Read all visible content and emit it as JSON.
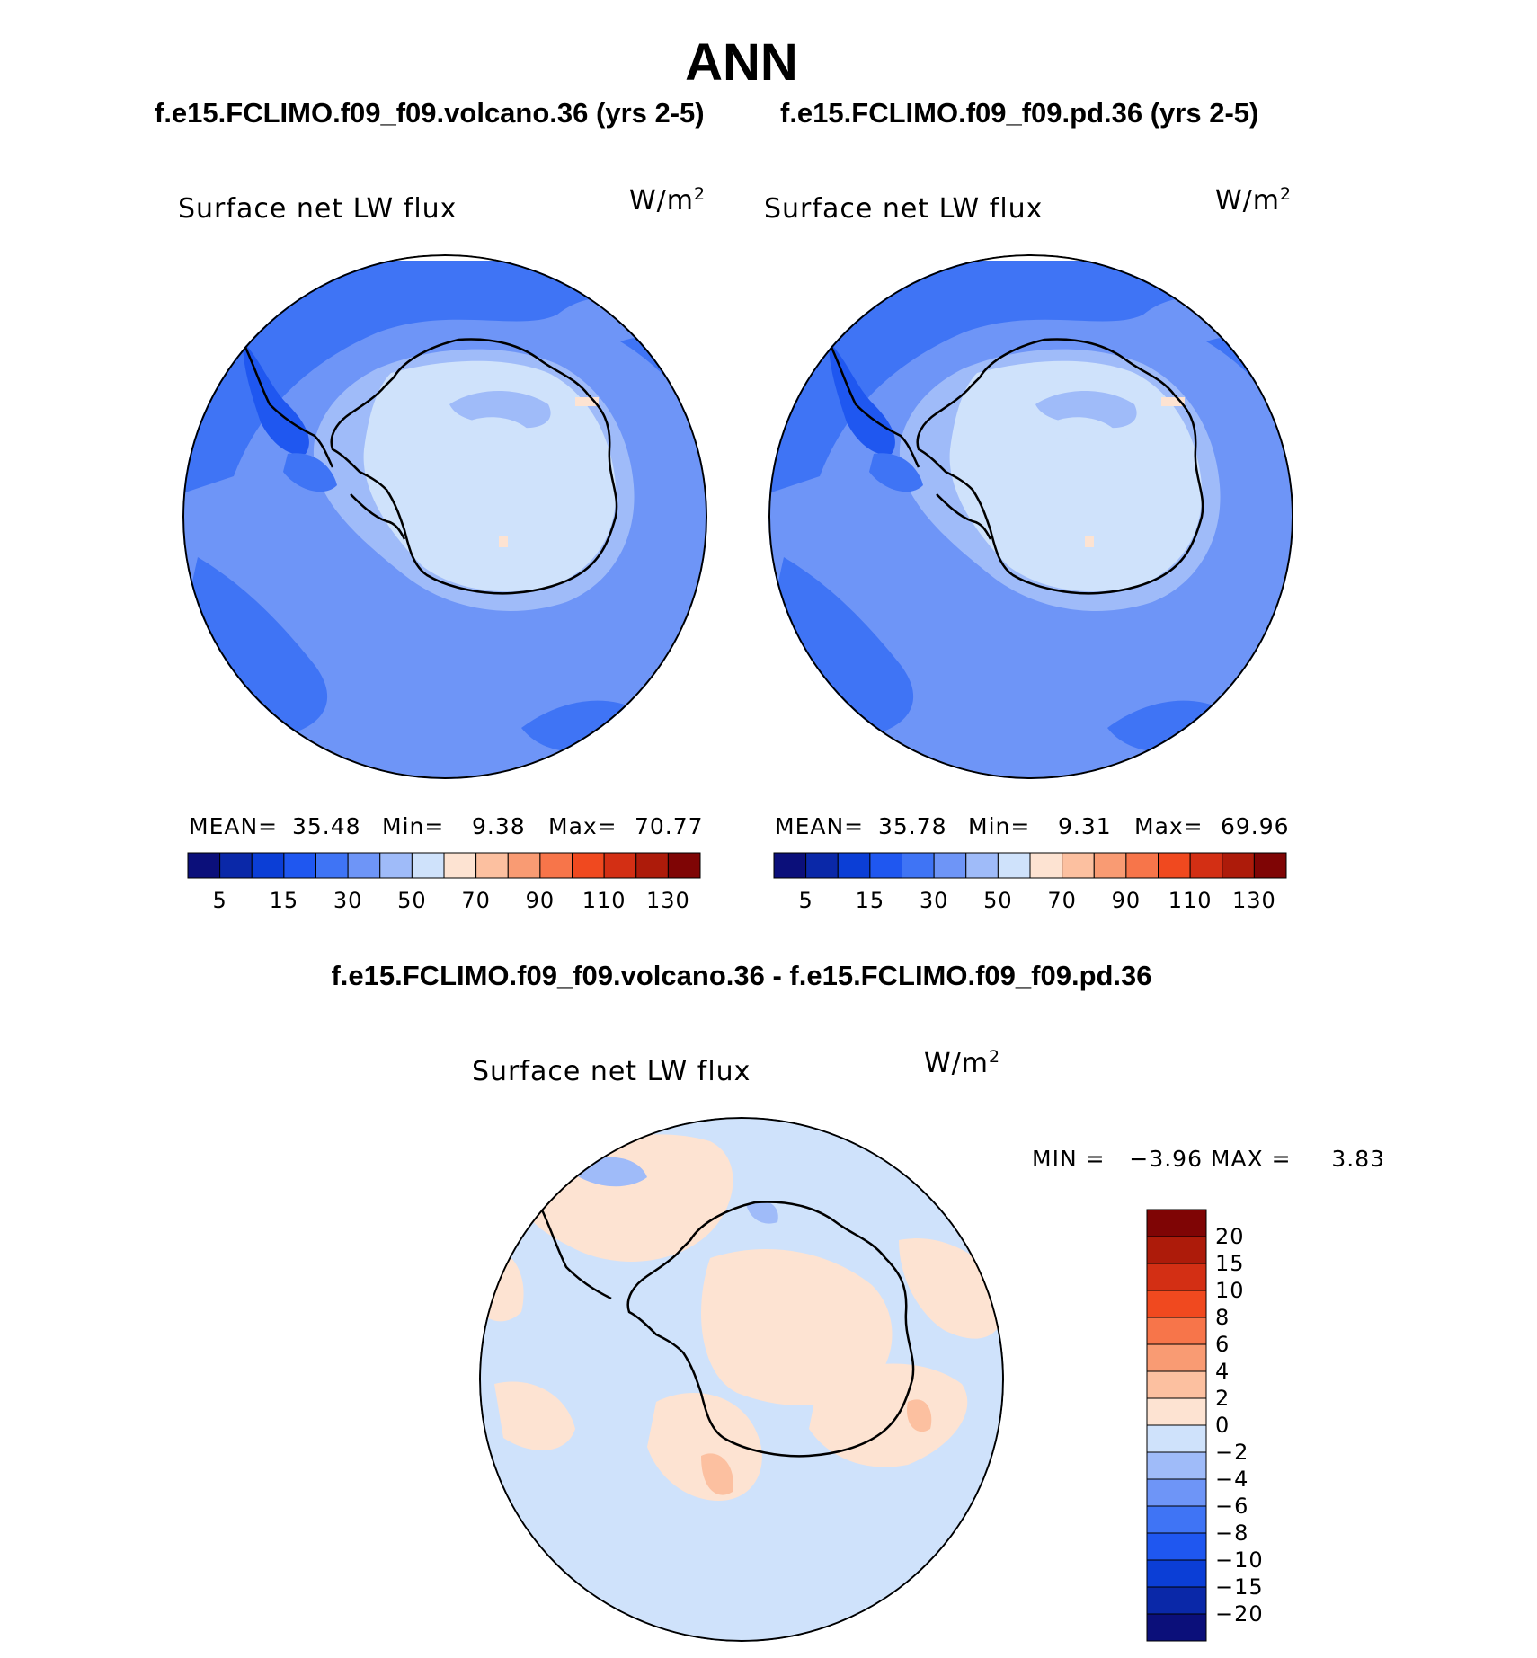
{
  "title": "ANN",
  "panels": [
    {
      "case": "f.e15.FCLIMO.f09_f09.volcano.36 (yrs 2-5)",
      "variable": "Surface net LW flux",
      "units": "W/m",
      "units_exp": "2",
      "stats": {
        "mean_label": "MEAN=",
        "mean": "35.48",
        "min_label": "Min=",
        "min": "9.38",
        "max_label": "Max=",
        "max": "70.77"
      }
    },
    {
      "case": "f.e15.FCLIMO.f09_f09.pd.36 (yrs 2-5)",
      "variable": "Surface net LW flux",
      "units": "W/m",
      "units_exp": "2",
      "stats": {
        "mean_label": "MEAN=",
        "mean": "35.78",
        "min_label": "Min=",
        "min": "9.31",
        "max_label": "Max=",
        "max": "69.96"
      }
    }
  ],
  "colorbar": {
    "colors": [
      "#0b0f7a",
      "#0a28a8",
      "#0b3ed6",
      "#1f57f0",
      "#3f74f5",
      "#6e95f7",
      "#9fbbf9",
      "#cfe2fb",
      "#fde3d2",
      "#fcc0a0",
      "#f99b73",
      "#f7754a",
      "#f0491f",
      "#d32f14",
      "#ad1b0a",
      "#7f0505"
    ],
    "ticks": [
      "5",
      "15",
      "30",
      "50",
      "70",
      "90",
      "110",
      "130"
    ]
  },
  "difference": {
    "title": "f.e15.FCLIMO.f09_f09.volcano.36 - f.e15.FCLIMO.f09_f09.pd.36",
    "variable": "Surface net LW flux",
    "units": "W/m",
    "units_exp": "2",
    "minmax": "MIN =   −3.96 MAX =     3.83",
    "colorbar_colors_top_to_bottom": [
      "#7f0505",
      "#ad1b0a",
      "#d32f14",
      "#f0491f",
      "#f7754a",
      "#f99b73",
      "#fcc0a0",
      "#fde3d2",
      "#cfe2fb",
      "#9fbbf9",
      "#6e95f7",
      "#3f74f5",
      "#1f57f0",
      "#0b3ed6",
      "#0a28a8",
      "#0b0f7a"
    ],
    "colorbar_ticks": [
      "20",
      "15",
      "10",
      "8",
      "6",
      "4",
      "2",
      "0",
      "−2",
      "−4",
      "−6",
      "−8",
      "−10",
      "−15",
      "−20"
    ]
  },
  "map_colors": {
    "ocean_far": "#3f74f5",
    "ocean": "#6e95f7",
    "near_coast": "#9fbbf9",
    "ice": "#cfe2fb",
    "warm": "#fde3d2",
    "peninsula_dark": "#1f57f0",
    "diff_neg": "#cfe2fb",
    "diff_pos": "#fde3d2",
    "diff_neg2": "#9fbbf9",
    "diff_pos2": "#fcc0a0"
  }
}
